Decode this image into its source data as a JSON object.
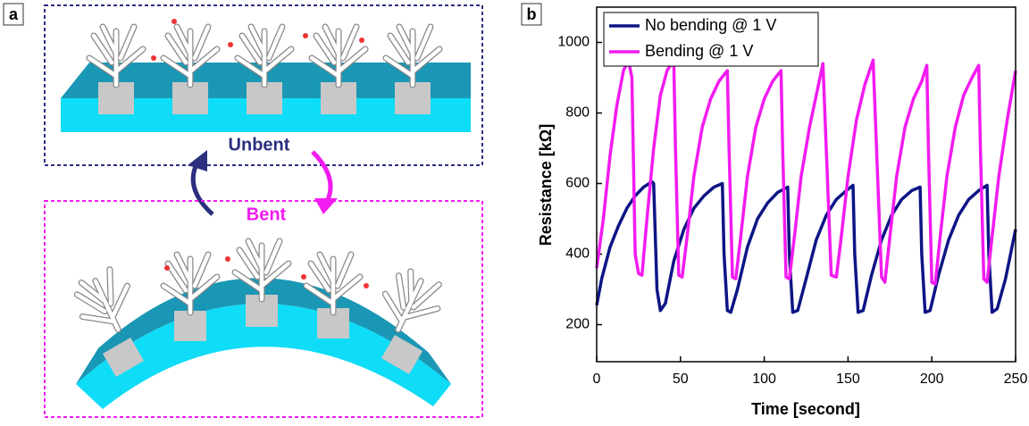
{
  "panel_a": {
    "label": "a",
    "top_label": "Unbent",
    "bottom_label": "Bent"
  },
  "chart_data": {
    "type": "line",
    "panel_label": "b",
    "xlabel": "Time [second]",
    "ylabel": "Resistance [kΩ]",
    "xlim": [
      0,
      250
    ],
    "ylim": [
      95,
      1100
    ],
    "xticks": [
      0,
      50,
      100,
      150,
      200,
      250
    ],
    "yticks": [
      200,
      400,
      600,
      800,
      1000
    ],
    "legend": "upper left",
    "series": [
      {
        "name": "No bending @ 1 V",
        "color": "#0d1585",
        "x": [
          0,
          3,
          8,
          13,
          18,
          23,
          28,
          33,
          34,
          36,
          38,
          41,
          46,
          52,
          58,
          64,
          70,
          75,
          76,
          78,
          80,
          84,
          90,
          96,
          102,
          108,
          114,
          115,
          117,
          120,
          125,
          131,
          137,
          143,
          149,
          153,
          154,
          156,
          159,
          164,
          170,
          176,
          182,
          188,
          193,
          194,
          196,
          199,
          204,
          210,
          216,
          222,
          228,
          233,
          234,
          236,
          239,
          244,
          250
        ],
        "values": [
          255,
          330,
          420,
          480,
          530,
          565,
          590,
          605,
          600,
          300,
          240,
          260,
          380,
          470,
          530,
          565,
          590,
          600,
          400,
          240,
          235,
          300,
          420,
          500,
          545,
          575,
          590,
          400,
          235,
          240,
          330,
          440,
          510,
          555,
          580,
          595,
          400,
          235,
          240,
          340,
          440,
          510,
          555,
          580,
          590,
          400,
          235,
          240,
          340,
          440,
          510,
          555,
          580,
          595,
          400,
          235,
          245,
          330,
          470
        ]
      },
      {
        "name": "Bending @ 1 V",
        "color": "#f21bf0",
        "x": [
          0,
          4,
          8,
          12,
          16,
          19,
          21,
          23,
          25,
          27,
          30,
          34,
          38,
          42,
          46,
          47,
          49,
          51,
          54,
          58,
          63,
          68,
          73,
          78,
          79,
          81,
          83,
          86,
          90,
          95,
          100,
          105,
          110,
          111,
          113,
          115,
          118,
          122,
          127,
          131,
          135,
          137,
          140,
          143,
          146,
          150,
          155,
          160,
          165,
          167,
          170,
          172,
          175,
          179,
          184,
          189,
          194,
          197,
          198,
          200,
          202,
          205,
          209,
          214,
          219,
          224,
          228,
          229,
          231,
          233,
          236,
          240,
          245,
          250
        ],
        "values": [
          360,
          500,
          680,
          820,
          920,
          950,
          900,
          400,
          345,
          340,
          500,
          700,
          850,
          920,
          950,
          700,
          340,
          335,
          450,
          620,
          760,
          840,
          890,
          920,
          700,
          335,
          330,
          450,
          620,
          760,
          840,
          890,
          920,
          700,
          335,
          330,
          450,
          620,
          760,
          850,
          940,
          700,
          340,
          335,
          450,
          620,
          780,
          880,
          950,
          700,
          335,
          320,
          450,
          620,
          760,
          840,
          890,
          935,
          700,
          320,
          315,
          450,
          620,
          760,
          850,
          900,
          935,
          700,
          330,
          320,
          450,
          620,
          780,
          920
        ]
      }
    ]
  }
}
